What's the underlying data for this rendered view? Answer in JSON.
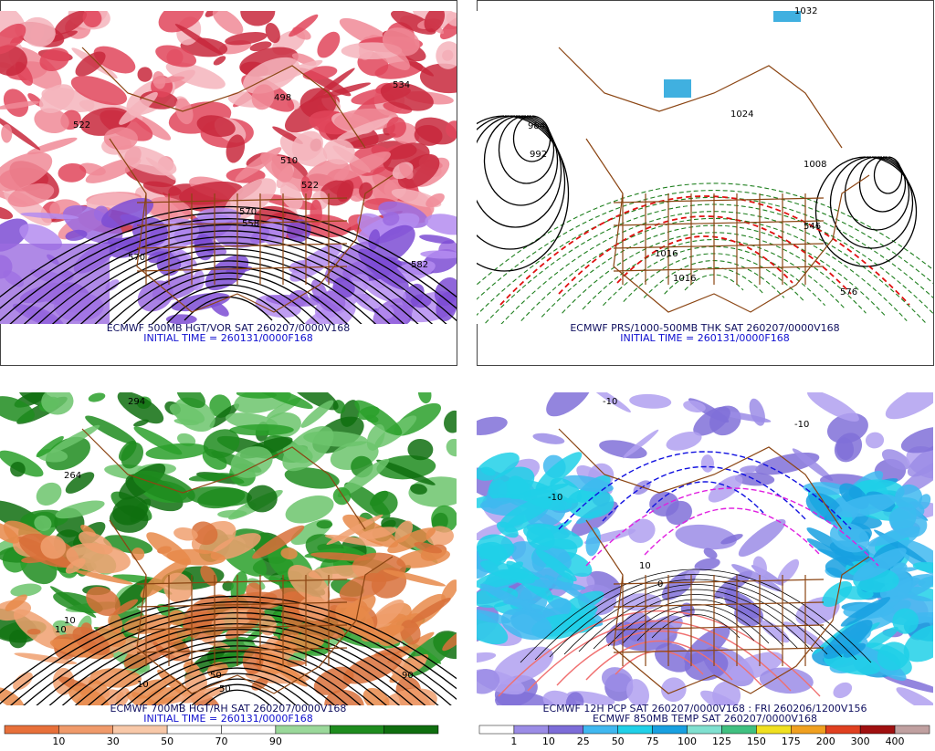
{
  "panels": [
    {
      "caption": "ECMWF 500MB HGT/VOR SAT 260207/0000V168",
      "initial": "INITIAL TIME = 260131/0000F168",
      "contour_labels": [
        "534",
        "498",
        "510",
        "522",
        "558",
        "570",
        "582",
        "570",
        "522"
      ]
    },
    {
      "caption": "ECMWF PRS/1000-500MB THK SAT 260207/0000V168",
      "initial": "INITIAL TIME = 260131/0000F168",
      "contour_labels": [
        "984",
        "992",
        "1024",
        "1008",
        "1016",
        "1016",
        "1032",
        "576",
        "546"
      ]
    },
    {
      "caption": "ECMWF 700MB HGT/RH SAT 260207/0000V168",
      "initial": "INITIAL TIME = 260131/0000F168",
      "contour_labels": [
        "294",
        "264",
        "10",
        "10",
        "50",
        "90",
        "10",
        "50"
      ]
    },
    {
      "caption": "ECMWF 12H PCP SAT 260207/0000V168 : FRI 260206/1200V156",
      "initial": "ECMWF 850MB TEMP SAT 260207/0000V168",
      "contour_labels": [
        "-10",
        "-10",
        "-10",
        "0",
        "10"
      ]
    }
  ],
  "rh_colorbar": {
    "labels": [
      "10",
      "30",
      "50",
      "70",
      "90"
    ]
  },
  "pcp_colorbar": {
    "labels": [
      "1",
      "10",
      "25",
      "50",
      "75",
      "100",
      "125",
      "150",
      "175",
      "200",
      "300",
      "400"
    ]
  }
}
